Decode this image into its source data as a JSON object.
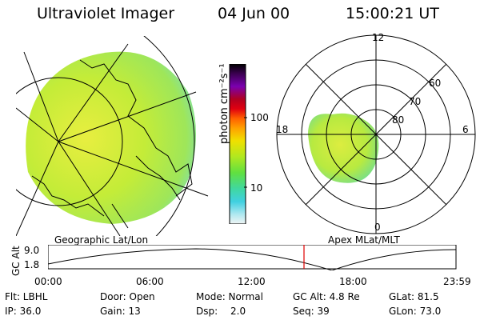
{
  "header": {
    "instrument": "Ultraviolet Imager",
    "date": "04 Jun 00",
    "time": "15:00:21 UT"
  },
  "colorbar": {
    "label": "photon cm⁻²s⁻¹",
    "ticks": [
      "100",
      "10"
    ],
    "colors": [
      "#000000",
      "#3a0050",
      "#5a0080",
      "#7a00b0",
      "#b00020",
      "#e00010",
      "#ff4000",
      "#ff8800",
      "#ffb000",
      "#f0e000",
      "#c8e810",
      "#90e020",
      "#60e040",
      "#40e070",
      "#30d8c0",
      "#60e0e0",
      "#a0eaf0",
      "#e0f0f4"
    ]
  },
  "left_panel": {
    "label": "Geographic Lat/Lon",
    "blob_color": "#b8ea40"
  },
  "right_panel": {
    "label": "Apex MLat/MLT",
    "mlt_labels": {
      "top": "12",
      "left": "18",
      "right": "6",
      "bottom": "0"
    },
    "lat_labels": [
      "60",
      "70",
      "80"
    ]
  },
  "altitude_plot": {
    "ylabel": "GC Alt",
    "yticks": [
      "9.0",
      "1.8"
    ],
    "xticks": [
      "00:00",
      "06:00",
      "12:00",
      "18:00",
      "23:59"
    ],
    "marker_color": "#e00000"
  },
  "info": {
    "filter": "Flt: LBHL",
    "door": "Door: Open",
    "mode": "Mode: Normal",
    "gc_alt": "GC Alt: 4.8 Re",
    "glat": "GLat: 81.5",
    "ip": "IP: 36.0",
    "gain": "Gain: 13",
    "dsp_label": "Dsp:",
    "dsp_value": "2.0",
    "seq": "Seq: 39",
    "glon": "GLon: 73.0"
  }
}
